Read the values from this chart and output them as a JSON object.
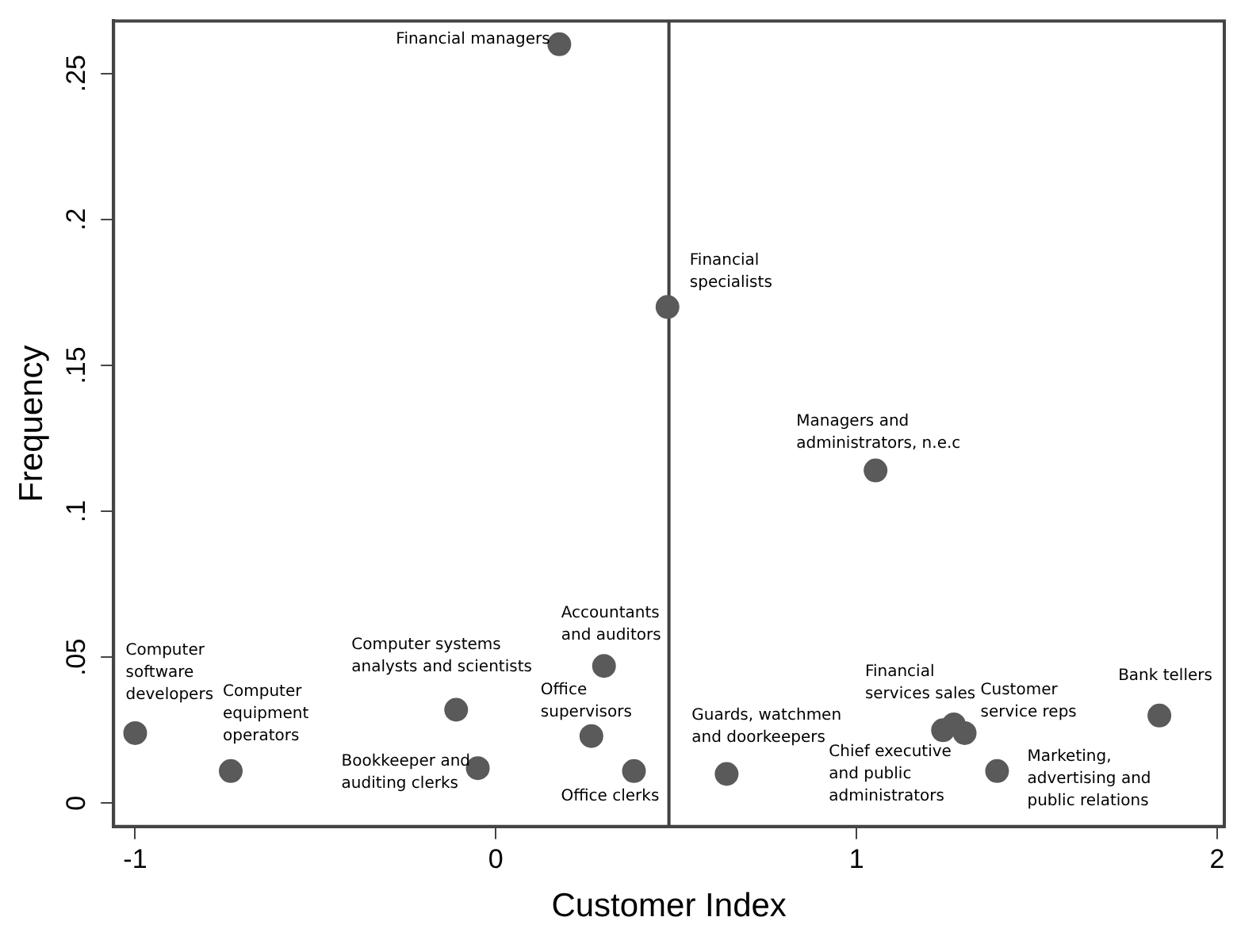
{
  "chart_data": {
    "type": "scatter",
    "xlabel": "Customer Index",
    "ylabel": "Frequency",
    "x": [
      -1.0,
      -0.735,
      -0.11,
      -0.05,
      0.3,
      0.265,
      0.383,
      0.64,
      1.24,
      1.27,
      1.3,
      1.39,
      1.84,
      0.176,
      0.476,
      1.053
    ],
    "series": [
      {
        "color": "#5a5a5a",
        "values": [
          0.024,
          0.011,
          0.032,
          0.012,
          0.047,
          0.023,
          0.011,
          0.01,
          0.025,
          0.027,
          0.024,
          0.011,
          0.03,
          0.26,
          0.17,
          0.114
        ]
      }
    ],
    "xlim": [
      -1.06,
      2.02
    ],
    "xticks": [
      -1,
      0,
      1,
      2
    ],
    "ylim": [
      -0.008,
      0.268
    ],
    "yticks": [
      0,
      {
        "value": 0.05,
        "label": ".05"
      },
      {
        "value": 0.1,
        "label": ".1"
      },
      {
        "value": 0.15,
        "label": ".15"
      },
      {
        "value": 0.2,
        "label": ".2"
      },
      {
        "value": 0.25,
        "label": ".25"
      }
    ],
    "ref_lines": [
      {
        "axis": "x",
        "value": 0.48,
        "color": "#404040"
      }
    ],
    "grid": false,
    "legend": false,
    "marker": "circle",
    "annotations": [
      {
        "text": "Computer\nsoftware\ndevelopers",
        "x": -1.0,
        "y": 0.024
      },
      {
        "text": "Computer\nequipment\noperators",
        "x": -0.735,
        "y": 0.011
      },
      {
        "text": "Computer systems\nanalysts and scientists",
        "x": -0.11,
        "y": 0.032
      },
      {
        "text": "Bookkeeper and\nauditing clerks",
        "x": -0.05,
        "y": 0.012
      },
      {
        "text": "Accountants\nand auditors",
        "x": 0.3,
        "y": 0.047
      },
      {
        "text": "Office\nsupervisors",
        "x": 0.265,
        "y": 0.023
      },
      {
        "text": "Office clerks",
        "x": 0.383,
        "y": 0.011
      },
      {
        "text": "Guards, watchmen\nand doorkeepers",
        "x": 0.64,
        "y": 0.01
      },
      {
        "text": "Financial\nservices sales",
        "x": 1.27,
        "y": 0.027
      },
      {
        "text": "Chief executive\nand public\nadministrators",
        "x": 1.24,
        "y": 0.025
      },
      {
        "text": "Customer\nservice reps",
        "x": 1.3,
        "y": 0.024
      },
      {
        "text": "Marketing,\nadvertising and\npublic relations",
        "x": 1.39,
        "y": 0.011
      },
      {
        "text": "Bank tellers",
        "x": 1.84,
        "y": 0.03
      },
      {
        "text": "Financial managers",
        "x": 0.176,
        "y": 0.26
      },
      {
        "text": "Financial\nspecialists",
        "x": 0.476,
        "y": 0.17
      },
      {
        "text": "Managers and\nadministrators, n.e.c",
        "x": 1.053,
        "y": 0.114
      }
    ]
  }
}
